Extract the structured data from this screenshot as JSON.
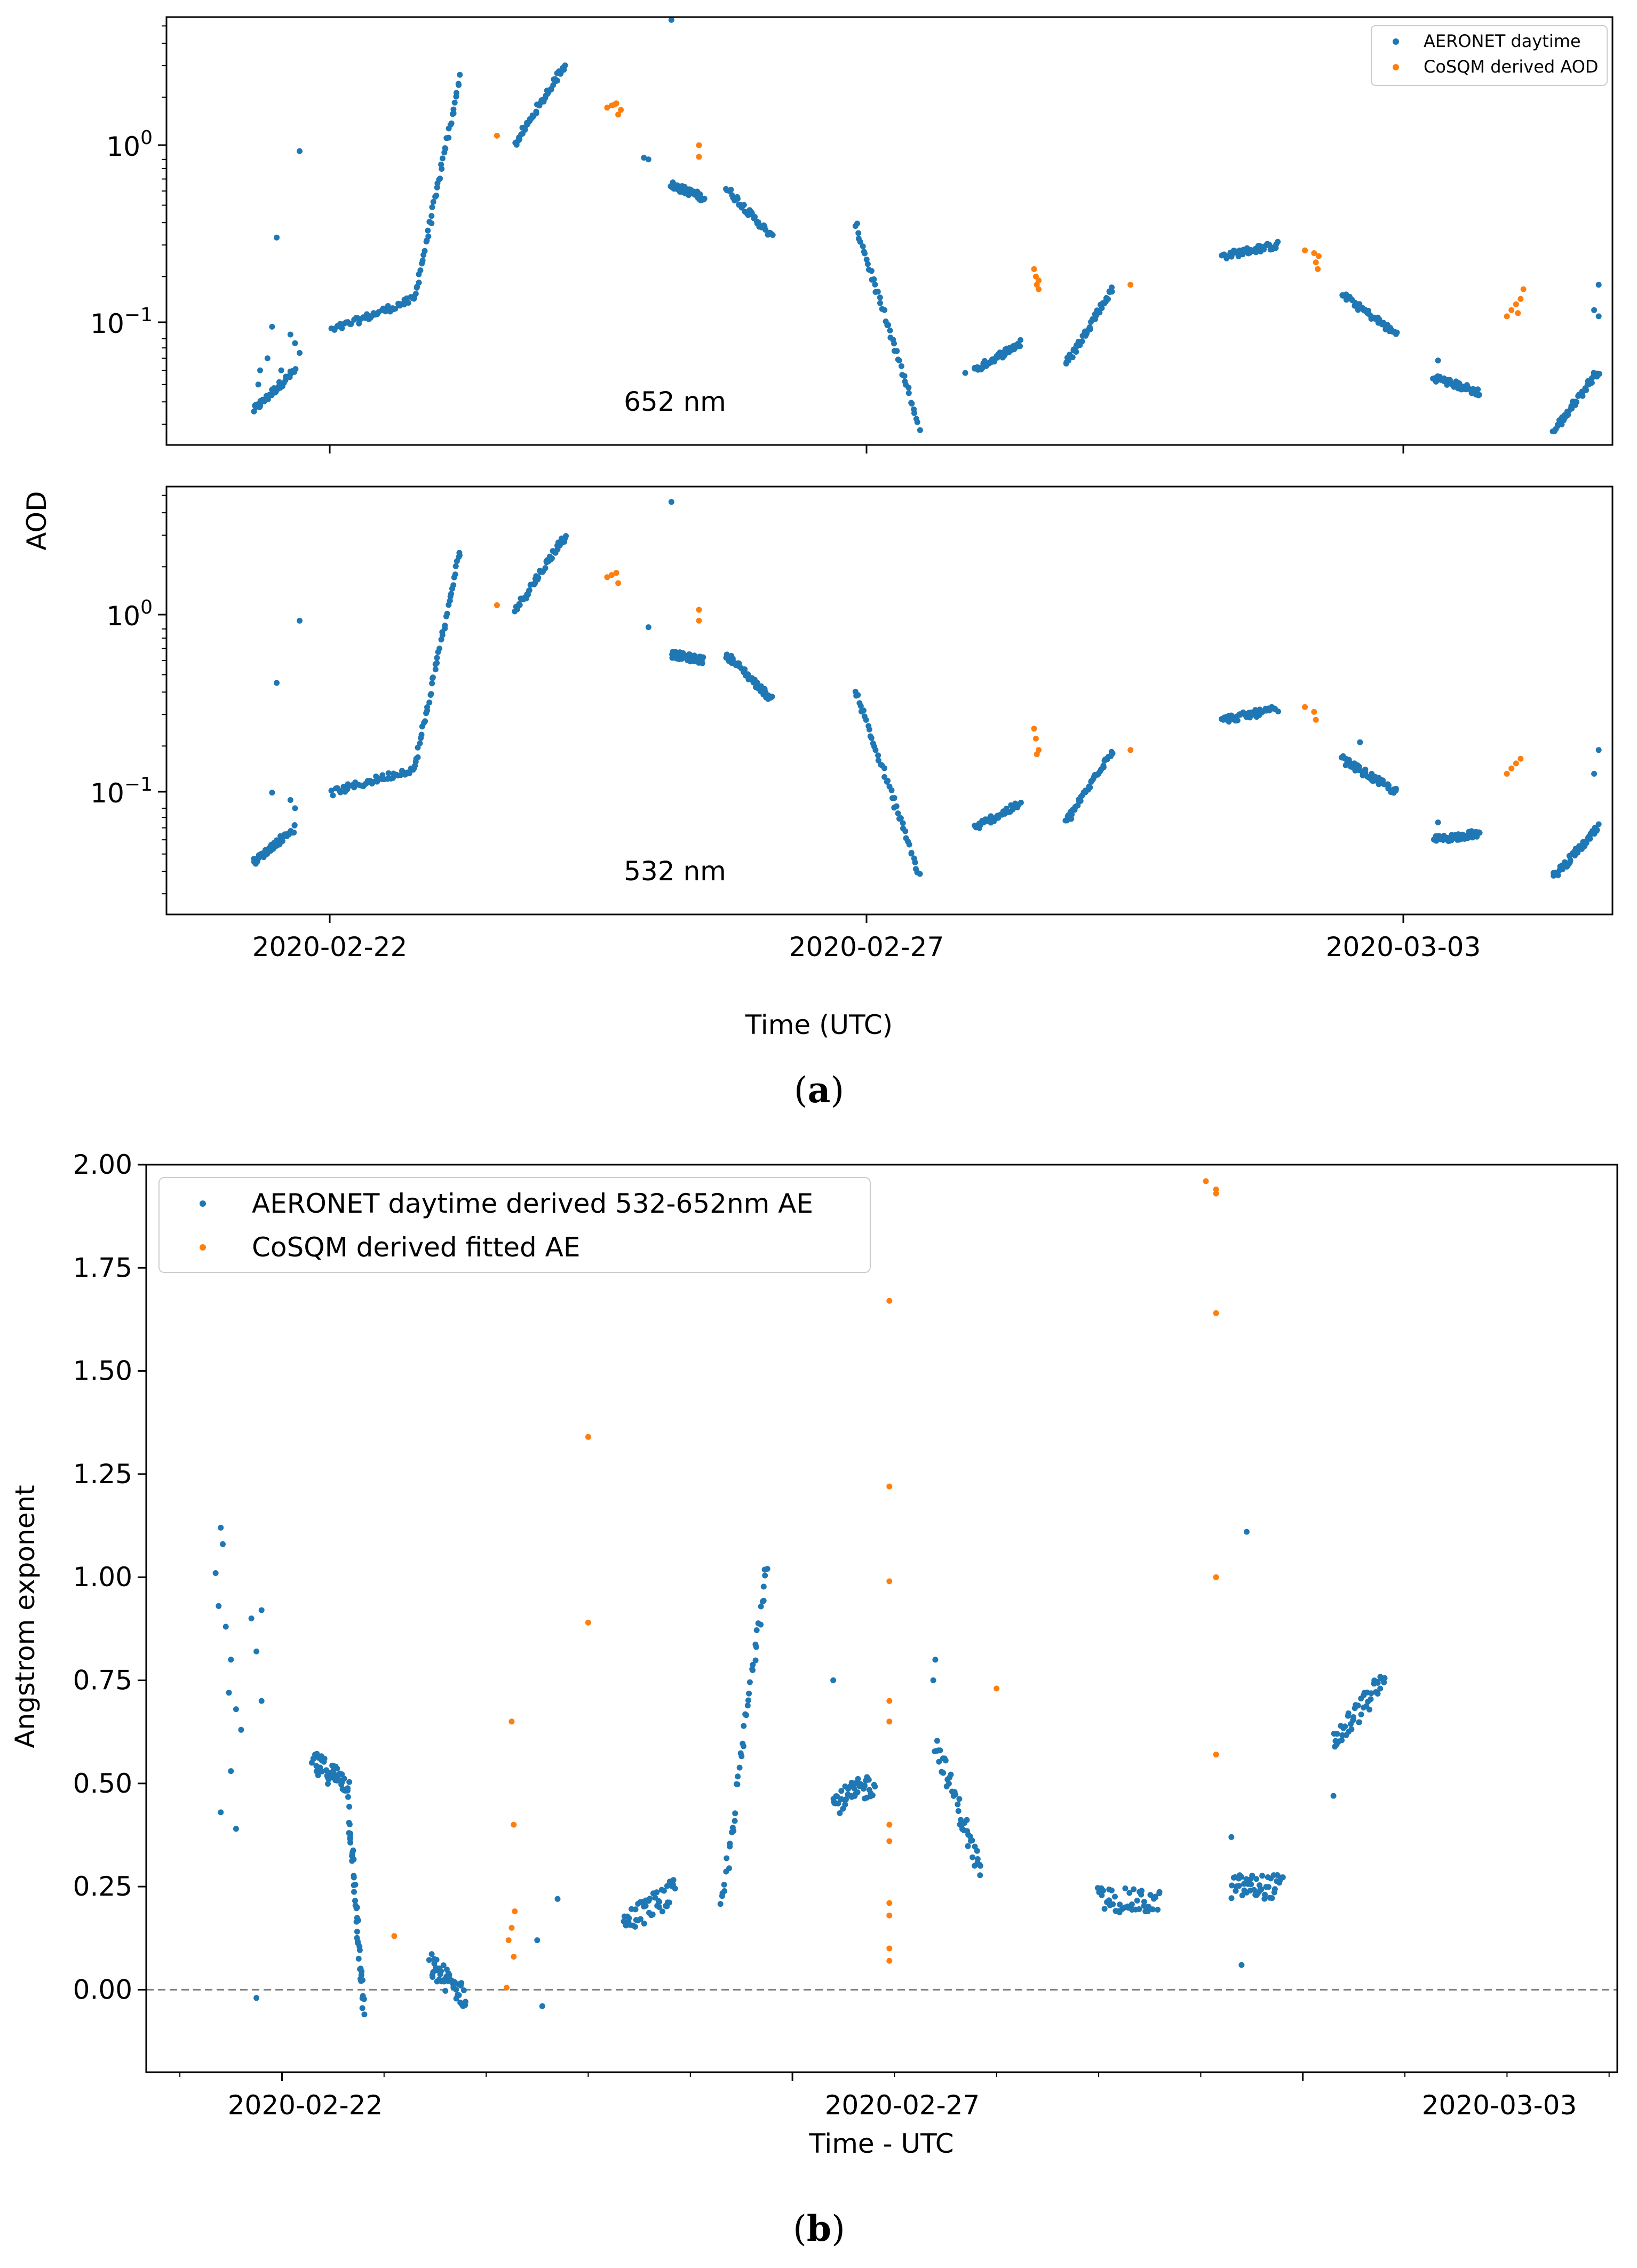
{
  "figure_a": {
    "caption_letter": "a",
    "caption_open": "(",
    "caption_close": ")",
    "ylabel": "AOD",
    "xlabel": "Time (UTC)",
    "x_tick_labels": [
      "2020-02-22",
      "2020-02-27",
      "2020-03-03"
    ],
    "y_tick_base": "10",
    "y_tick_exponents": [
      "0",
      "−1"
    ],
    "legend": [
      "AERONET daytime",
      "CoSQM derived AOD"
    ],
    "panel_labels": [
      "652 nm",
      "532 nm"
    ]
  },
  "figure_b": {
    "caption_letter": "b",
    "caption_open": "(",
    "caption_close": ")",
    "ylabel": "Angstrom exponent",
    "xlabel": "Time - UTC",
    "x_tick_labels": [
      "2020-02-22",
      "2020-02-27",
      "2020-03-03"
    ],
    "y_tick_labels": [
      "0.00",
      "0.25",
      "0.50",
      "0.75",
      "1.00",
      "1.25",
      "1.50",
      "1.75",
      "2.00"
    ],
    "legend": [
      "AERONET daytime derived 532-652nm AE",
      "CoSQM derived fitted AE"
    ]
  },
  "colors": {
    "aeronet": "#1f77b4",
    "cosqm": "#ff7f0e",
    "reference_line": "#808080"
  },
  "chart_data": [
    {
      "type": "scatter",
      "title": "652 nm",
      "xlabel": "",
      "ylabel": "AOD",
      "yscale": "log",
      "xlim": [
        "2020-02-20T12:00",
        "2020-03-04T18:00"
      ],
      "ylim": [
        0.023,
        5.6
      ],
      "series": [
        {
          "name": "AERONET daytime",
          "segments": [
            {
              "x": [
                -0.55,
                -0.1
              ],
              "y": [
                0.036,
                0.06
              ]
            },
            {
              "x": [
                0.3,
                1.2
              ],
              "y": [
                0.1,
                0.15
              ]
            },
            {
              "x": [
                1.2,
                1.7
              ],
              "y": [
                0.15,
                2.6
              ]
            },
            {
              "x": [
                2.3,
                2.85
              ],
              "y": [
                1.1,
                3.1
              ]
            },
            {
              "x": [
                4.0,
                4.35
              ],
              "y": [
                0.65,
                0.55
              ]
            },
            {
              "x": [
                4.6,
                5.1
              ],
              "y": [
                0.62,
                0.33
              ]
            },
            {
              "x": [
                6.0,
                6.7
              ],
              "y": [
                0.4,
                0.029
              ]
            },
            {
              "x": [
                7.3,
                7.8
              ],
              "y": [
                0.06,
                0.085
              ]
            },
            {
              "x": [
                8.3,
                8.8
              ],
              "y": [
                0.065,
                0.17
              ]
            },
            {
              "x": [
                10.0,
                10.6
              ],
              "y": [
                0.26,
                0.3
              ]
            },
            {
              "x": [
                11.3,
                11.9
              ],
              "y": [
                0.16,
                0.095
              ]
            },
            {
              "x": [
                12.3,
                12.8
              ],
              "y": [
                0.055,
                0.045
              ]
            },
            {
              "x": [
                13.6,
                14.1
              ],
              "y": [
                0.027,
                0.06
              ]
            }
          ],
          "points": [
            {
              "x": -0.5,
              "y": 0.05
            },
            {
              "x": -0.48,
              "y": 0.06
            },
            {
              "x": -0.4,
              "y": 0.07
            },
            {
              "x": -0.35,
              "y": 0.105
            },
            {
              "x": -0.3,
              "y": 0.33
            },
            {
              "x": -0.25,
              "y": 0.06
            },
            {
              "x": -0.15,
              "y": 0.095
            },
            {
              "x": -0.1,
              "y": 0.085
            },
            {
              "x": -0.05,
              "y": 0.075
            },
            {
              "x": -0.05,
              "y": 1.0
            },
            {
              "x": 4.0,
              "y": 5.4
            },
            {
              "x": 3.7,
              "y": 0.92
            },
            {
              "x": 3.75,
              "y": 0.9
            },
            {
              "x": 7.2,
              "y": 0.058
            },
            {
              "x": 12.35,
              "y": 0.068
            },
            {
              "x": 14.1,
              "y": 0.18
            },
            {
              "x": 14.05,
              "y": 0.13
            },
            {
              "x": 14.1,
              "y": 0.12
            }
          ]
        },
        {
          "name": "CoSQM derived AOD",
          "points": [
            {
              "x": 2.1,
              "y": 1.22
            },
            {
              "x": 3.3,
              "y": 1.75
            },
            {
              "x": 3.35,
              "y": 1.8
            },
            {
              "x": 3.4,
              "y": 1.85
            },
            {
              "x": 3.42,
              "y": 1.6
            },
            {
              "x": 3.45,
              "y": 1.7
            },
            {
              "x": 3.38,
              "y": 1.82
            },
            {
              "x": 4.3,
              "y": 1.08
            },
            {
              "x": 4.3,
              "y": 0.93
            },
            {
              "x": 7.95,
              "y": 0.22
            },
            {
              "x": 7.97,
              "y": 0.2
            },
            {
              "x": 8.0,
              "y": 0.19
            },
            {
              "x": 7.98,
              "y": 0.18
            },
            {
              "x": 8.0,
              "y": 0.17
            },
            {
              "x": 9.0,
              "y": 0.18
            },
            {
              "x": 10.9,
              "y": 0.28
            },
            {
              "x": 11.0,
              "y": 0.27
            },
            {
              "x": 11.02,
              "y": 0.24
            },
            {
              "x": 11.05,
              "y": 0.26
            },
            {
              "x": 11.04,
              "y": 0.22
            },
            {
              "x": 13.1,
              "y": 0.12
            },
            {
              "x": 13.15,
              "y": 0.13
            },
            {
              "x": 13.2,
              "y": 0.14
            },
            {
              "x": 13.25,
              "y": 0.15
            },
            {
              "x": 13.28,
              "y": 0.17
            },
            {
              "x": 13.22,
              "y": 0.125
            }
          ]
        }
      ],
      "x_ticks": [
        "2020-02-22",
        "2020-02-27",
        "2020-03-03"
      ],
      "legend_position": "top-right"
    },
    {
      "type": "scatter",
      "title": "532 nm",
      "xlabel": "Time (UTC)",
      "ylabel": "AOD",
      "yscale": "log",
      "xlim": [
        "2020-02-20T12:00",
        "2020-03-04T18:00"
      ],
      "ylim": [
        0.023,
        5.6
      ],
      "series": [
        {
          "name": "AERONET daytime",
          "segments": [
            {
              "x": [
                -0.55,
                -0.1
              ],
              "y": [
                0.045,
                0.07
              ]
            },
            {
              "x": [
                0.3,
                1.2
              ],
              "y": [
                0.11,
                0.15
              ]
            },
            {
              "x": [
                1.2,
                1.7
              ],
              "y": [
                0.15,
                2.5
              ]
            },
            {
              "x": [
                2.3,
                2.85
              ],
              "y": [
                1.15,
                3.0
              ]
            },
            {
              "x": [
                4.0,
                4.35
              ],
              "y": [
                0.65,
                0.6
              ]
            },
            {
              "x": [
                4.6,
                5.1
              ],
              "y": [
                0.65,
                0.36
              ]
            },
            {
              "x": [
                6.0,
                6.7
              ],
              "y": [
                0.42,
                0.038
              ]
            },
            {
              "x": [
                7.3,
                7.8
              ],
              "y": [
                0.07,
                0.095
              ]
            },
            {
              "x": [
                8.3,
                8.8
              ],
              "y": [
                0.075,
                0.19
              ]
            },
            {
              "x": [
                10.0,
                10.6
              ],
              "y": [
                0.28,
                0.32
              ]
            },
            {
              "x": [
                11.3,
                11.9
              ],
              "y": [
                0.17,
                0.11
              ]
            },
            {
              "x": [
                12.3,
                12.8
              ],
              "y": [
                0.06,
                0.065
              ]
            },
            {
              "x": [
                13.6,
                14.1
              ],
              "y": [
                0.037,
                0.07
              ]
            }
          ],
          "points": [
            {
              "x": -0.3,
              "y": 0.45
            },
            {
              "x": -0.35,
              "y": 0.11
            },
            {
              "x": -0.15,
              "y": 0.1
            },
            {
              "x": -0.1,
              "y": 0.09
            },
            {
              "x": -0.05,
              "y": 1.0
            },
            {
              "x": 4.0,
              "y": 4.6
            },
            {
              "x": 3.75,
              "y": 0.92
            },
            {
              "x": 12.35,
              "y": 0.075
            },
            {
              "x": 14.1,
              "y": 0.19
            },
            {
              "x": 14.05,
              "y": 0.14
            },
            {
              "x": 11.5,
              "y": 0.21
            }
          ]
        },
        {
          "name": "CoSQM derived AOD",
          "points": [
            {
              "x": 2.1,
              "y": 1.22
            },
            {
              "x": 3.3,
              "y": 1.75
            },
            {
              "x": 3.35,
              "y": 1.8
            },
            {
              "x": 3.4,
              "y": 1.85
            },
            {
              "x": 3.42,
              "y": 1.62
            },
            {
              "x": 4.3,
              "y": 1.15
            },
            {
              "x": 4.3,
              "y": 1.0
            },
            {
              "x": 7.95,
              "y": 0.25
            },
            {
              "x": 7.97,
              "y": 0.22
            },
            {
              "x": 8.0,
              "y": 0.19
            },
            {
              "x": 7.98,
              "y": 0.18
            },
            {
              "x": 9.0,
              "y": 0.19
            },
            {
              "x": 10.9,
              "y": 0.33
            },
            {
              "x": 11.0,
              "y": 0.31
            },
            {
              "x": 11.02,
              "y": 0.28
            },
            {
              "x": 13.1,
              "y": 0.14
            },
            {
              "x": 13.15,
              "y": 0.15
            },
            {
              "x": 13.2,
              "y": 0.16
            },
            {
              "x": 13.25,
              "y": 0.17
            }
          ]
        }
      ],
      "x_ticks": [
        "2020-02-22",
        "2020-02-27",
        "2020-03-03"
      ]
    },
    {
      "type": "scatter",
      "title": "",
      "xlabel": "Time - UTC",
      "ylabel": "Angstrom exponent",
      "xlim": [
        "2020-02-20T16:00",
        "2020-03-04T02:00"
      ],
      "ylim": [
        -0.2,
        2.0
      ],
      "reference_line_y": 0.0,
      "series": [
        {
          "name": "AERONET daytime derived 532-652nm AE",
          "segments": [
            {
              "x": [
                0.3,
                0.65
              ],
              "y": [
                0.55,
                0.5
              ]
            },
            {
              "x": [
                0.65,
                0.8
              ],
              "y": [
                0.45,
                -0.06
              ]
            },
            {
              "x": [
                1.45,
                1.8
              ],
              "y": [
                0.06,
                -0.02
              ]
            },
            {
              "x": [
                3.35,
                3.85
              ],
              "y": [
                0.16,
                0.24
              ]
            },
            {
              "x": [
                4.3,
                4.75
              ],
              "y": [
                0.18,
                1.05
              ]
            },
            {
              "x": [
                5.4,
                5.8
              ],
              "y": [
                0.45,
                0.5
              ]
            },
            {
              "x": [
                6.4,
                6.85
              ],
              "y": [
                0.6,
                0.28
              ]
            },
            {
              "x": [
                8.0,
                8.6
              ],
              "y": [
                0.22,
                0.21
              ]
            },
            {
              "x": [
                9.3,
                9.8
              ],
              "y": [
                0.25,
                0.25
              ]
            },
            {
              "x": [
                10.3,
                10.8
              ],
              "y": [
                0.6,
                0.75
              ]
            }
          ],
          "points": [
            {
              "x": -0.6,
              "y": 1.12
            },
            {
              "x": -0.58,
              "y": 1.08
            },
            {
              "x": -0.65,
              "y": 1.01
            },
            {
              "x": -0.62,
              "y": 0.93
            },
            {
              "x": -0.55,
              "y": 0.88
            },
            {
              "x": -0.5,
              "y": 0.8
            },
            {
              "x": -0.52,
              "y": 0.72
            },
            {
              "x": -0.45,
              "y": 0.68
            },
            {
              "x": -0.4,
              "y": 0.63
            },
            {
              "x": -0.5,
              "y": 0.53
            },
            {
              "x": -0.6,
              "y": 0.43
            },
            {
              "x": -0.45,
              "y": 0.39
            },
            {
              "x": -0.3,
              "y": 0.9
            },
            {
              "x": -0.25,
              "y": 0.82
            },
            {
              "x": -0.2,
              "y": 0.7
            },
            {
              "x": -0.2,
              "y": 0.92
            },
            {
              "x": -0.25,
              "y": -0.02
            },
            {
              "x": 2.5,
              "y": 0.12
            },
            {
              "x": 2.55,
              "y": -0.04
            },
            {
              "x": 2.7,
              "y": 0.22
            },
            {
              "x": 6.4,
              "y": 0.8
            },
            {
              "x": 6.38,
              "y": 0.75
            },
            {
              "x": 5.4,
              "y": 0.75
            },
            {
              "x": 9.3,
              "y": 0.37
            },
            {
              "x": 9.4,
              "y": 0.06
            },
            {
              "x": 9.45,
              "y": 1.11
            },
            {
              "x": 10.3,
              "y": 0.47
            }
          ]
        },
        {
          "name": "CoSQM derived fitted AE",
          "points": [
            {
              "x": 1.1,
              "y": 0.13
            },
            {
              "x": 2.2,
              "y": 0.005
            },
            {
              "x": 2.25,
              "y": 0.65
            },
            {
              "x": 2.27,
              "y": 0.4
            },
            {
              "x": 2.28,
              "y": 0.19
            },
            {
              "x": 2.25,
              "y": 0.15
            },
            {
              "x": 2.22,
              "y": 0.12
            },
            {
              "x": 2.27,
              "y": 0.08
            },
            {
              "x": 3.0,
              "y": 1.34
            },
            {
              "x": 3.0,
              "y": 0.89
            },
            {
              "x": 5.95,
              "y": 1.67
            },
            {
              "x": 5.95,
              "y": 1.22
            },
            {
              "x": 5.95,
              "y": 0.99
            },
            {
              "x": 5.95,
              "y": 0.7
            },
            {
              "x": 5.95,
              "y": 0.65
            },
            {
              "x": 5.95,
              "y": 0.4
            },
            {
              "x": 5.95,
              "y": 0.36
            },
            {
              "x": 5.95,
              "y": 0.21
            },
            {
              "x": 5.95,
              "y": 0.18
            },
            {
              "x": 5.95,
              "y": 0.1
            },
            {
              "x": 5.95,
              "y": 0.07
            },
            {
              "x": 7.0,
              "y": 0.73
            },
            {
              "x": 9.05,
              "y": 1.96
            },
            {
              "x": 9.15,
              "y": 1.94
            },
            {
              "x": 9.15,
              "y": 1.93
            },
            {
              "x": 9.15,
              "y": 1.64
            },
            {
              "x": 9.15,
              "y": 1.0
            },
            {
              "x": 9.15,
              "y": 0.57
            }
          ]
        }
      ],
      "x_ticks": [
        "2020-02-22",
        "2020-02-27",
        "2020-03-03"
      ],
      "legend_position": "top-left"
    }
  ]
}
